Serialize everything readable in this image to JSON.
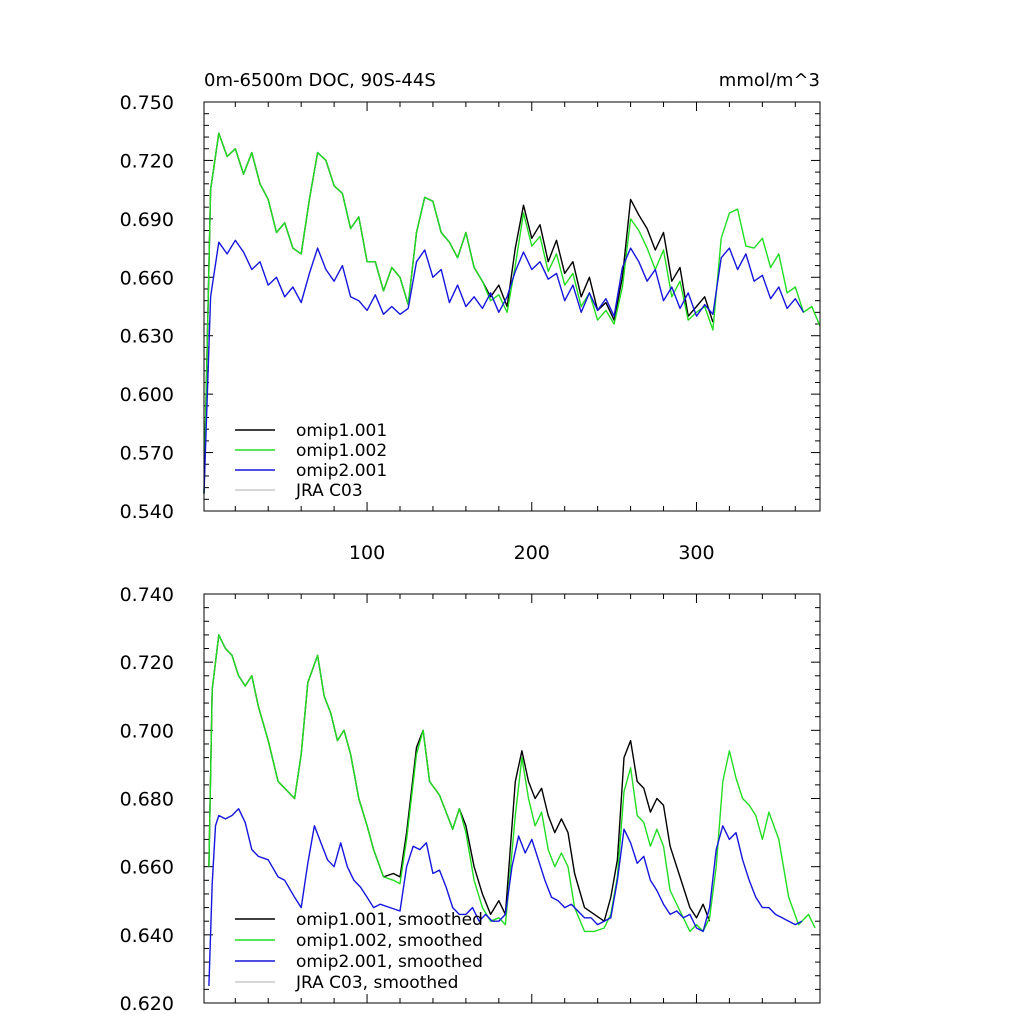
{
  "chart_data": [
    {
      "type": "line",
      "title": "0m-6500m DOC, 90S-44S",
      "units": "mmol/m^3",
      "xlim": [
        1,
        375
      ],
      "ylim": [
        0.54,
        0.75
      ],
      "xticks": [
        100,
        200,
        300
      ],
      "xtick_labels": [
        "100",
        "200",
        "300"
      ],
      "yticks": [
        0.54,
        0.57,
        0.6,
        0.63,
        0.66,
        0.69,
        0.72,
        0.75
      ],
      "ytick_labels": [
        "0.540",
        "0.570",
        "0.600",
        "0.630",
        "0.660",
        "0.690",
        "0.720",
        "0.750"
      ],
      "legend_position": "bottom-left",
      "series": [
        {
          "name": "omip1.001",
          "color": "#000000",
          "x": [
            1,
            5,
            10,
            15,
            20,
            25,
            30,
            35,
            40,
            45,
            50,
            55,
            60,
            65,
            70,
            75,
            80,
            85,
            90,
            95,
            100,
            105,
            110,
            115,
            120,
            125,
            130,
            135,
            140,
            145,
            150,
            155,
            160,
            165,
            170,
            175,
            180,
            185,
            190,
            195,
            200,
            205,
            210,
            215,
            220,
            225,
            230,
            235,
            240,
            245,
            250,
            255,
            260,
            265,
            270,
            275,
            280,
            285,
            290,
            295,
            300,
            305,
            310
          ],
          "values": [
            0.549,
            0.705,
            0.734,
            0.722,
            0.726,
            0.713,
            0.724,
            0.708,
            0.7,
            0.683,
            0.688,
            0.675,
            0.672,
            0.7,
            0.724,
            0.72,
            0.707,
            0.703,
            0.685,
            0.691,
            0.668,
            0.668,
            0.653,
            0.665,
            0.66,
            0.646,
            0.683,
            0.701,
            0.699,
            0.683,
            0.678,
            0.67,
            0.683,
            0.665,
            0.658,
            0.65,
            0.656,
            0.645,
            0.675,
            0.697,
            0.68,
            0.687,
            0.668,
            0.679,
            0.662,
            0.668,
            0.65,
            0.66,
            0.643,
            0.647,
            0.638,
            0.66,
            0.7,
            0.692,
            0.685,
            0.674,
            0.683,
            0.658,
            0.665,
            0.64,
            0.645,
            0.65,
            0.637
          ]
        },
        {
          "name": "omip1.002",
          "color": "#22dd22",
          "x": [
            1,
            5,
            10,
            15,
            20,
            25,
            30,
            35,
            40,
            45,
            50,
            55,
            60,
            65,
            70,
            75,
            80,
            85,
            90,
            95,
            100,
            105,
            110,
            115,
            120,
            125,
            130,
            135,
            140,
            145,
            150,
            155,
            160,
            165,
            170,
            175,
            180,
            185,
            190,
            195,
            200,
            205,
            210,
            215,
            220,
            225,
            230,
            235,
            240,
            245,
            250,
            255,
            260,
            265,
            270,
            275,
            280,
            285,
            290,
            295,
            300,
            305,
            310,
            315,
            320,
            325,
            330,
            335,
            340,
            345,
            350,
            355,
            360,
            365,
            370,
            375
          ],
          "values": [
            0.549,
            0.705,
            0.734,
            0.722,
            0.726,
            0.713,
            0.724,
            0.708,
            0.7,
            0.683,
            0.688,
            0.675,
            0.672,
            0.7,
            0.724,
            0.72,
            0.707,
            0.703,
            0.685,
            0.691,
            0.668,
            0.668,
            0.653,
            0.665,
            0.66,
            0.646,
            0.683,
            0.701,
            0.699,
            0.683,
            0.678,
            0.67,
            0.683,
            0.665,
            0.658,
            0.648,
            0.651,
            0.642,
            0.666,
            0.693,
            0.676,
            0.681,
            0.663,
            0.672,
            0.656,
            0.662,
            0.645,
            0.652,
            0.638,
            0.643,
            0.636,
            0.655,
            0.69,
            0.684,
            0.675,
            0.664,
            0.674,
            0.65,
            0.658,
            0.638,
            0.642,
            0.645,
            0.633,
            0.68,
            0.693,
            0.695,
            0.676,
            0.675,
            0.68,
            0.665,
            0.672,
            0.652,
            0.655,
            0.642,
            0.645,
            0.635
          ]
        },
        {
          "name": "omip2.001",
          "color": "#1515dd",
          "x": [
            1,
            5,
            10,
            15,
            20,
            25,
            30,
            35,
            40,
            45,
            50,
            55,
            60,
            65,
            70,
            75,
            80,
            85,
            90,
            95,
            100,
            105,
            110,
            115,
            120,
            125,
            130,
            135,
            140,
            145,
            150,
            155,
            160,
            165,
            170,
            175,
            180,
            185,
            190,
            195,
            200,
            205,
            210,
            215,
            220,
            225,
            230,
            235,
            240,
            245,
            250,
            255,
            260,
            265,
            270,
            275,
            280,
            285,
            290,
            295,
            300,
            305,
            310,
            315,
            320,
            325,
            330,
            335,
            340,
            345,
            350,
            355,
            360,
            365
          ],
          "values": [
            0.549,
            0.65,
            0.678,
            0.672,
            0.679,
            0.673,
            0.664,
            0.668,
            0.656,
            0.66,
            0.65,
            0.655,
            0.647,
            0.662,
            0.675,
            0.664,
            0.658,
            0.666,
            0.65,
            0.648,
            0.643,
            0.651,
            0.641,
            0.645,
            0.641,
            0.644,
            0.668,
            0.674,
            0.66,
            0.664,
            0.647,
            0.656,
            0.645,
            0.65,
            0.644,
            0.652,
            0.642,
            0.65,
            0.663,
            0.673,
            0.664,
            0.668,
            0.659,
            0.662,
            0.648,
            0.656,
            0.642,
            0.652,
            0.643,
            0.649,
            0.64,
            0.665,
            0.675,
            0.668,
            0.658,
            0.664,
            0.648,
            0.655,
            0.644,
            0.652,
            0.64,
            0.646,
            0.641,
            0.67,
            0.675,
            0.664,
            0.672,
            0.658,
            0.661,
            0.649,
            0.655,
            0.644,
            0.649,
            0.642
          ]
        },
        {
          "name": "JRA C03",
          "color": "#c8c8c8",
          "x": [],
          "values": []
        }
      ]
    },
    {
      "type": "line",
      "title": "",
      "xlim": [
        1,
        375
      ],
      "ylim": [
        0.62,
        0.74
      ],
      "xticks": [
        100,
        200,
        300
      ],
      "xtick_labels": [
        "",
        "",
        ""
      ],
      "yticks": [
        0.62,
        0.64,
        0.66,
        0.68,
        0.7,
        0.72,
        0.74
      ],
      "ytick_labels": [
        "0.620",
        "0.640",
        "0.660",
        "0.680",
        "0.700",
        "0.720",
        "0.740"
      ],
      "legend_position": "bottom-left",
      "series": [
        {
          "name": "omip1.001, smoothed",
          "color": "#000000",
          "x": [
            4,
            6,
            10,
            14,
            18,
            22,
            26,
            30,
            34,
            40,
            46,
            50,
            56,
            60,
            64,
            70,
            74,
            78,
            82,
            86,
            90,
            95,
            100,
            104,
            110,
            116,
            120,
            124,
            130,
            134,
            138,
            144,
            148,
            152,
            156,
            160,
            165,
            170,
            175,
            180,
            184,
            190,
            194,
            198,
            202,
            206,
            210,
            214,
            218,
            222,
            226,
            232,
            238,
            244,
            248,
            252,
            256,
            260,
            264,
            268,
            272,
            276,
            280,
            284,
            290,
            296,
            300,
            304,
            308
          ],
          "values": [
            0.66,
            0.712,
            0.728,
            0.724,
            0.722,
            0.716,
            0.713,
            0.716,
            0.707,
            0.697,
            0.685,
            0.683,
            0.68,
            0.693,
            0.714,
            0.722,
            0.71,
            0.705,
            0.697,
            0.7,
            0.693,
            0.68,
            0.672,
            0.665,
            0.657,
            0.658,
            0.657,
            0.67,
            0.695,
            0.7,
            0.685,
            0.681,
            0.676,
            0.671,
            0.677,
            0.672,
            0.66,
            0.652,
            0.646,
            0.65,
            0.646,
            0.685,
            0.694,
            0.685,
            0.68,
            0.683,
            0.675,
            0.67,
            0.674,
            0.67,
            0.658,
            0.648,
            0.646,
            0.644,
            0.651,
            0.662,
            0.692,
            0.697,
            0.685,
            0.683,
            0.676,
            0.68,
            0.678,
            0.666,
            0.657,
            0.648,
            0.645,
            0.649,
            0.644
          ]
        },
        {
          "name": "omip1.002, smoothed",
          "color": "#22dd22",
          "x": [
            4,
            6,
            10,
            14,
            18,
            22,
            26,
            30,
            34,
            40,
            46,
            50,
            56,
            60,
            64,
            70,
            74,
            78,
            82,
            86,
            90,
            95,
            100,
            104,
            110,
            116,
            120,
            124,
            130,
            134,
            138,
            144,
            148,
            152,
            156,
            160,
            165,
            170,
            175,
            180,
            184,
            190,
            194,
            198,
            202,
            206,
            210,
            214,
            218,
            222,
            226,
            232,
            238,
            244,
            248,
            252,
            256,
            260,
            264,
            268,
            272,
            276,
            280,
            284,
            290,
            296,
            300,
            304,
            308,
            312,
            316,
            320,
            324,
            328,
            332,
            336,
            340,
            344,
            350,
            356,
            362,
            368,
            372
          ],
          "values": [
            0.66,
            0.712,
            0.728,
            0.724,
            0.722,
            0.716,
            0.713,
            0.716,
            0.707,
            0.697,
            0.685,
            0.683,
            0.68,
            0.693,
            0.714,
            0.722,
            0.71,
            0.705,
            0.697,
            0.7,
            0.693,
            0.68,
            0.672,
            0.665,
            0.657,
            0.656,
            0.655,
            0.668,
            0.693,
            0.7,
            0.685,
            0.681,
            0.676,
            0.671,
            0.677,
            0.67,
            0.656,
            0.648,
            0.644,
            0.645,
            0.643,
            0.675,
            0.692,
            0.68,
            0.672,
            0.676,
            0.665,
            0.66,
            0.664,
            0.66,
            0.648,
            0.641,
            0.641,
            0.642,
            0.646,
            0.657,
            0.682,
            0.689,
            0.675,
            0.673,
            0.666,
            0.671,
            0.666,
            0.653,
            0.647,
            0.641,
            0.643,
            0.641,
            0.645,
            0.66,
            0.685,
            0.694,
            0.686,
            0.68,
            0.678,
            0.675,
            0.668,
            0.676,
            0.668,
            0.651,
            0.643,
            0.646,
            0.642
          ]
        },
        {
          "name": "omip2.001, smoothed",
          "color": "#1515dd",
          "x": [
            4,
            6,
            8,
            10,
            14,
            18,
            22,
            26,
            30,
            34,
            40,
            46,
            50,
            56,
            60,
            64,
            68,
            72,
            76,
            80,
            84,
            88,
            92,
            96,
            100,
            104,
            108,
            114,
            120,
            124,
            128,
            132,
            136,
            140,
            144,
            148,
            152,
            156,
            160,
            164,
            168,
            172,
            176,
            180,
            184,
            188,
            192,
            196,
            200,
            204,
            208,
            212,
            216,
            220,
            224,
            228,
            232,
            236,
            240,
            244,
            248,
            252,
            256,
            260,
            264,
            268,
            272,
            276,
            280,
            284,
            288,
            292,
            296,
            300,
            304,
            308,
            312,
            316,
            320,
            324,
            328,
            332,
            336,
            340,
            344,
            348,
            352,
            356,
            360,
            364
          ],
          "values": [
            0.625,
            0.655,
            0.672,
            0.675,
            0.674,
            0.675,
            0.677,
            0.673,
            0.665,
            0.663,
            0.662,
            0.657,
            0.656,
            0.651,
            0.648,
            0.661,
            0.672,
            0.667,
            0.662,
            0.66,
            0.667,
            0.66,
            0.656,
            0.654,
            0.651,
            0.648,
            0.649,
            0.648,
            0.647,
            0.66,
            0.666,
            0.665,
            0.667,
            0.658,
            0.659,
            0.654,
            0.648,
            0.646,
            0.646,
            0.648,
            0.644,
            0.646,
            0.644,
            0.644,
            0.646,
            0.66,
            0.669,
            0.664,
            0.668,
            0.662,
            0.656,
            0.651,
            0.65,
            0.648,
            0.649,
            0.647,
            0.645,
            0.645,
            0.643,
            0.644,
            0.645,
            0.656,
            0.671,
            0.667,
            0.661,
            0.663,
            0.656,
            0.653,
            0.649,
            0.646,
            0.647,
            0.645,
            0.646,
            0.642,
            0.641,
            0.648,
            0.665,
            0.672,
            0.668,
            0.67,
            0.662,
            0.656,
            0.651,
            0.648,
            0.648,
            0.646,
            0.645,
            0.644,
            0.643,
            0.644
          ]
        },
        {
          "name": "JRA C03, smoothed",
          "color": "#c8c8c8",
          "x": [],
          "values": []
        }
      ]
    }
  ]
}
